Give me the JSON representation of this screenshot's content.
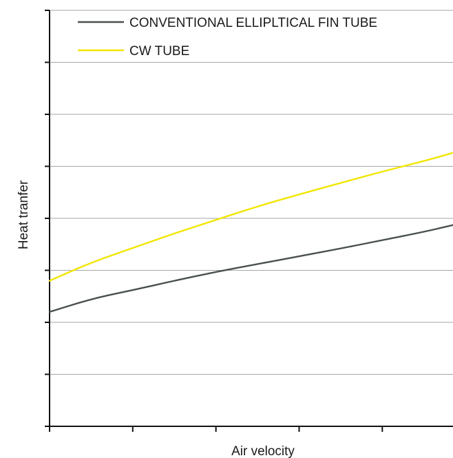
{
  "chart_data": {
    "type": "line",
    "title": "",
    "xlabel": "Air velocity",
    "ylabel": "Heat tranfer",
    "xlim": [
      0,
      4.85
    ],
    "ylim": [
      0,
      8
    ],
    "x_ticks": [
      0,
      1,
      2,
      3,
      4
    ],
    "y_ticks": [
      0,
      1,
      2,
      3,
      4,
      5,
      6,
      7,
      8
    ],
    "tick_labels_shown": false,
    "grid": {
      "horizontal": true,
      "vertical": false
    },
    "legend_position": "top",
    "series": [
      {
        "name": "CONVENTIONAL ELLIPLTICAL FIN TUBE",
        "color": "#4a4f4f",
        "x": [
          0,
          0.5,
          1,
          1.5,
          2,
          2.5,
          3,
          3.5,
          4,
          4.5,
          4.85
        ],
        "y": [
          2.2,
          2.45,
          2.62,
          2.8,
          2.97,
          3.12,
          3.27,
          3.42,
          3.58,
          3.74,
          3.87
        ]
      },
      {
        "name": "CW TUBE",
        "color": "#f2e600",
        "x": [
          0,
          0.5,
          1,
          1.5,
          2,
          2.5,
          3,
          3.5,
          4,
          4.5,
          4.85
        ],
        "y": [
          2.8,
          3.15,
          3.43,
          3.71,
          3.97,
          4.23,
          4.46,
          4.68,
          4.9,
          5.1,
          5.26
        ]
      }
    ]
  }
}
